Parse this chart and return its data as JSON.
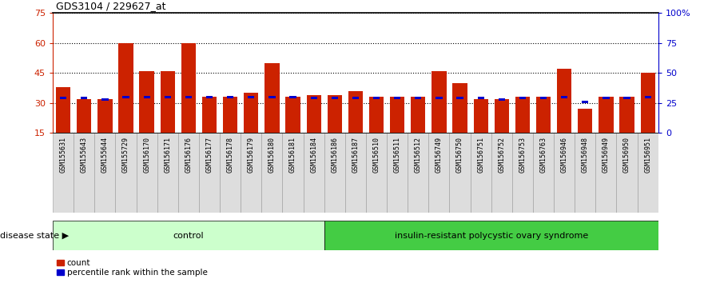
{
  "title": "GDS3104 / 229627_at",
  "samples": [
    "GSM155631",
    "GSM155643",
    "GSM155644",
    "GSM155729",
    "GSM156170",
    "GSM156171",
    "GSM156176",
    "GSM156177",
    "GSM156178",
    "GSM156179",
    "GSM156180",
    "GSM156181",
    "GSM156184",
    "GSM156186",
    "GSM156187",
    "GSM156510",
    "GSM156511",
    "GSM156512",
    "GSM156749",
    "GSM156750",
    "GSM156751",
    "GSM156752",
    "GSM156753",
    "GSM156763",
    "GSM156946",
    "GSM156948",
    "GSM156949",
    "GSM156950",
    "GSM156951"
  ],
  "counts": [
    38,
    32,
    32,
    60,
    46,
    46,
    60,
    33,
    33,
    35,
    50,
    33,
    34,
    34,
    36,
    33,
    33,
    33,
    46,
    40,
    32,
    32,
    33,
    33,
    47,
    27,
    33,
    33,
    45
  ],
  "percentile_ranks": [
    29,
    29,
    28,
    30,
    30,
    30,
    30,
    30,
    30,
    30,
    30,
    30,
    29,
    29,
    29,
    29,
    29,
    29,
    29,
    29,
    29,
    28,
    29,
    29,
    30,
    26,
    29,
    29,
    30
  ],
  "control_count": 13,
  "disease_label": "insulin-resistant polycystic ovary syndrome",
  "control_label": "control",
  "disease_state_label": "disease state",
  "ylim_left": [
    15,
    75
  ],
  "ylim_right": [
    0,
    100
  ],
  "yticks_left": [
    15,
    30,
    45,
    60,
    75
  ],
  "yticks_right": [
    0,
    25,
    50,
    75,
    100
  ],
  "ytick_right_labels": [
    "0",
    "25",
    "50",
    "75",
    "100%"
  ],
  "bar_color": "#cc2200",
  "percentile_color": "#0000cc",
  "control_bg": "#ccffcc",
  "disease_bg": "#44cc44",
  "xticklabel_bg": "#dddddd",
  "bar_width": 0.7,
  "grid_color": "#000000",
  "fig_bg": "#ffffff"
}
